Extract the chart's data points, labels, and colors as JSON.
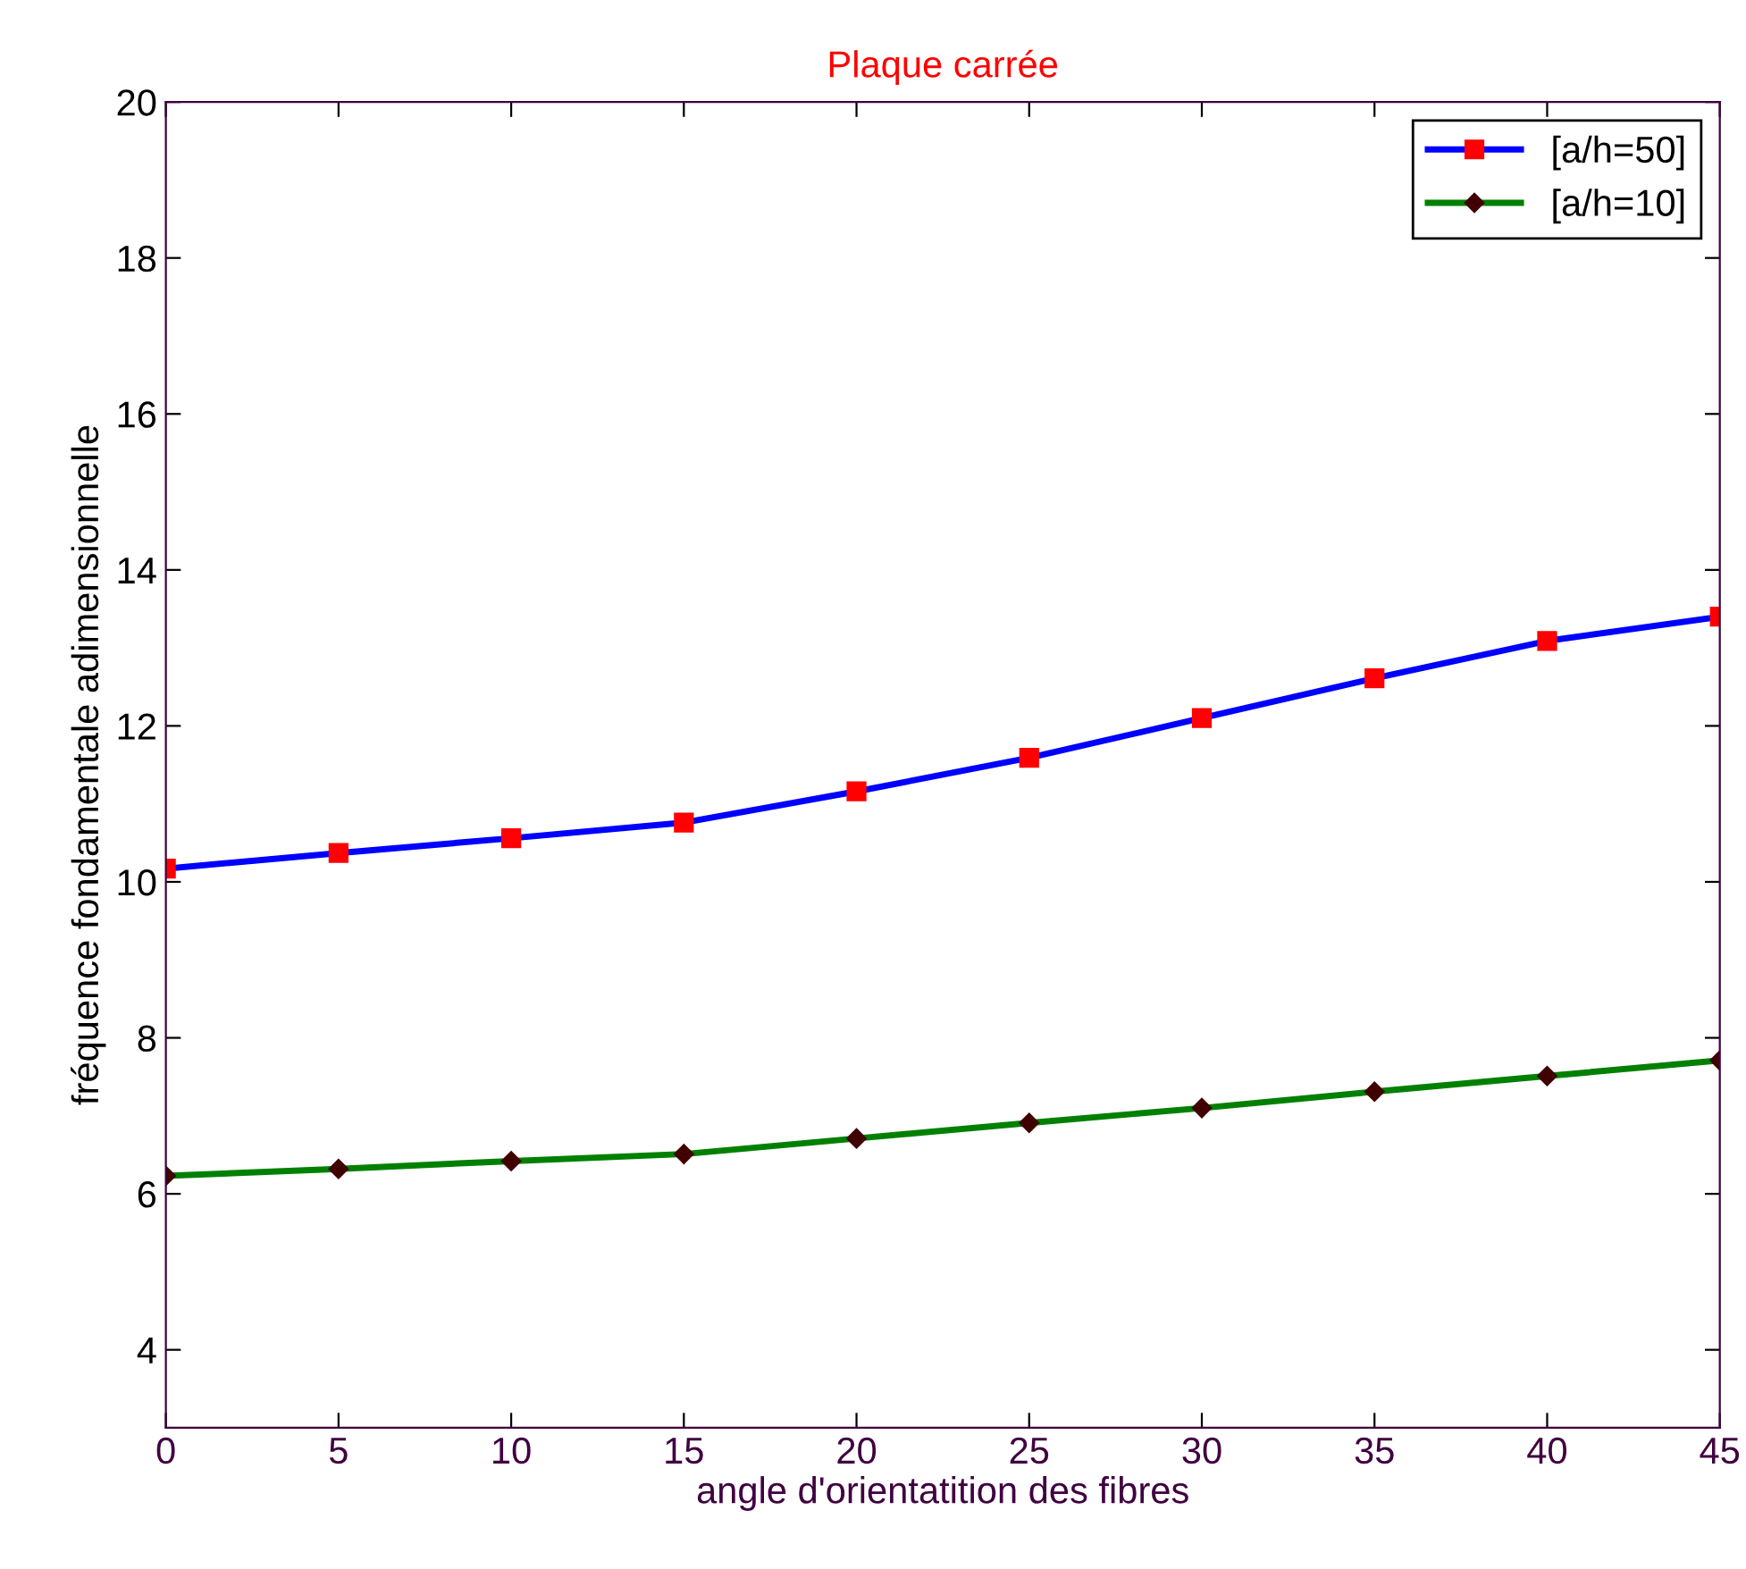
{
  "chart_data": {
    "type": "line",
    "title": "Plaque carrée",
    "xlabel": "angle d'orientatition des fibres",
    "ylabel": "fréquence fondamentale adimensionnelle",
    "x": [
      0,
      5,
      10,
      15,
      20,
      25,
      30,
      35,
      40,
      45
    ],
    "series": [
      {
        "name": "[a/h=50]",
        "color": "#0000ff",
        "marker": "square",
        "values": [
          10.17,
          10.37,
          10.56,
          10.76,
          11.16,
          11.59,
          12.1,
          12.61,
          13.09,
          13.4
        ]
      },
      {
        "name": "[a/h=10]",
        "color": "#008000",
        "marker": "diamond",
        "values": [
          6.23,
          6.32,
          6.42,
          6.51,
          6.71,
          6.91,
          7.1,
          7.31,
          7.51,
          7.71
        ]
      }
    ],
    "xlim": [
      0,
      45
    ],
    "xticks": [
      0,
      5,
      10,
      15,
      20,
      25,
      30,
      35,
      40,
      45
    ],
    "ylim": [
      3,
      20
    ],
    "yticks": [
      4,
      6,
      8,
      10,
      12,
      14,
      16,
      18,
      20
    ],
    "grid": false,
    "legend": "top right",
    "line_style": "solid"
  }
}
